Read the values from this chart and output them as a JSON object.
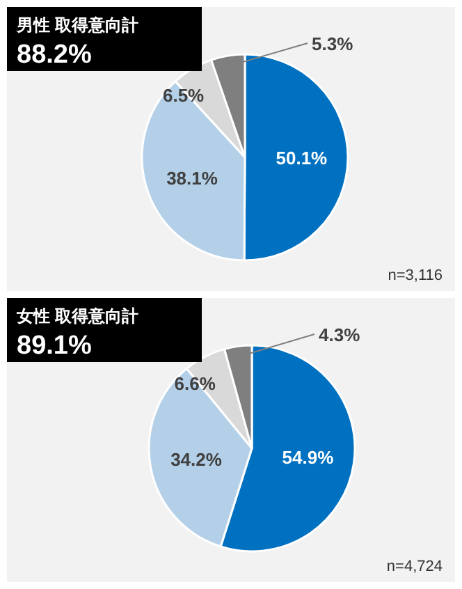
{
  "chart_data": [
    {
      "type": "pie",
      "title": "男性 取得意向計",
      "subtitle": "88.2%",
      "categories": [
        null,
        null,
        null,
        null
      ],
      "values": [
        50.1,
        38.1,
        6.5,
        5.3
      ],
      "value_labels": [
        "50.1%",
        "38.1%",
        "6.5%",
        "5.3%"
      ],
      "colors": [
        "#0070c0",
        "#b4d0e8",
        "#d9d9d9",
        "#7f7f7f"
      ],
      "annotations": [
        "n=3,116"
      ]
    },
    {
      "type": "pie",
      "title": "女性 取得意向計",
      "subtitle": "89.1%",
      "categories": [
        null,
        null,
        null,
        null
      ],
      "values": [
        54.9,
        34.2,
        6.6,
        4.3
      ],
      "value_labels": [
        "54.9%",
        "34.2%",
        "6.6%",
        "4.3%"
      ],
      "colors": [
        "#0070c0",
        "#b4d0e8",
        "#d9d9d9",
        "#7f7f7f"
      ],
      "annotations": [
        "n=4,724"
      ]
    }
  ]
}
